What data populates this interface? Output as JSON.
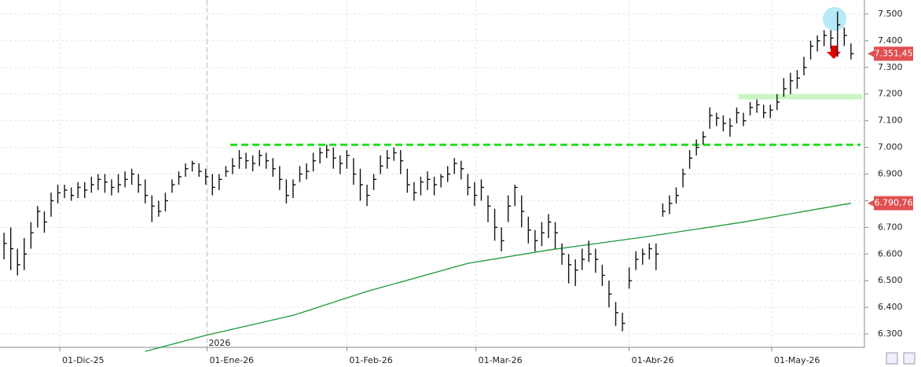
{
  "chart_data": {
    "type": "hlc",
    "xlim": [
      -0.6,
      128
    ],
    "xticks": [
      {
        "value": 8.3,
        "label": "01-Dic-25"
      },
      {
        "value": 30.2,
        "label": "01-Ene-26"
      },
      {
        "value": 51,
        "label": "01-Feb-26"
      },
      {
        "value": 70.2,
        "label": "01-Mar-26"
      },
      {
        "value": 93,
        "label": "01-Abr-26"
      },
      {
        "value": 114.2,
        "label": "01-May-26"
      }
    ],
    "ylim": [
      6250,
      7553
    ],
    "yticks": [
      {
        "value": 6300,
        "label": "6.300"
      },
      {
        "value": 6400,
        "label": "6.400"
      },
      {
        "value": 6500,
        "label": "6.500"
      },
      {
        "value": 6600,
        "label": "6.600"
      },
      {
        "value": 6700,
        "label": "6.700"
      },
      {
        "value": 6800,
        "label": "6.800"
      },
      {
        "value": 6900,
        "label": "6.900"
      },
      {
        "value": 7000,
        "label": "7.000"
      },
      {
        "value": 7100,
        "label": "7.100"
      },
      {
        "value": 7200,
        "label": "7.200"
      },
      {
        "value": 7300,
        "label": "7.300"
      },
      {
        "value": 7400,
        "label": "7.400"
      },
      {
        "value": 7500,
        "label": "7.500"
      }
    ],
    "grid": true,
    "color": "#111111",
    "high": [
      6680,
      6700,
      6620,
      6660,
      6720,
      6780,
      6760,
      6830,
      6860,
      6860,
      6850,
      6870,
      6870,
      6890,
      6900,
      6900,
      6880,
      6900,
      6910,
      6920,
      6900,
      6880,
      6820,
      6800,
      6830,
      6880,
      6910,
      6940,
      6950,
      6940,
      6920,
      6900,
      6900,
      6930,
      6960,
      6990,
      6980,
      6970,
      6990,
      6980,
      6960,
      6930,
      6880,
      6880,
      6930,
      6940,
      6980,
      7000,
      7010,
      7000,
      6970,
      6990,
      6960,
      6920,
      6860,
      6900,
      6970,
      6990,
      7000,
      6990,
      6920,
      6870,
      6890,
      6910,
      6890,
      6900,
      6930,
      6960,
      6950,
      6900,
      6870,
      6880,
      6820,
      6770,
      6700,
      6820,
      6860,
      6820,
      6740,
      6690,
      6720,
      6750,
      6720,
      6640,
      6600,
      6580,
      6620,
      6650,
      6620,
      6560,
      6500,
      6420,
      6380,
      6550,
      6610,
      6620,
      6640,
      6640,
      6790,
      6820,
      6850,
      6920,
      6990,
      7030,
      7060,
      7150,
      7130,
      7120,
      7110,
      7150,
      7130,
      7170,
      7180,
      7160,
      7160,
      7200,
      7260,
      7280,
      7290,
      7340,
      7400,
      7420,
      7440,
      7440,
      7510,
      7450,
      7390
    ],
    "low": [
      6580,
      6540,
      6520,
      6540,
      6620,
      6700,
      6680,
      6740,
      6790,
      6810,
      6800,
      6810,
      6810,
      6830,
      6840,
      6830,
      6820,
      6830,
      6850,
      6860,
      6830,
      6790,
      6720,
      6740,
      6760,
      6830,
      6860,
      6890,
      6910,
      6890,
      6860,
      6820,
      6840,
      6890,
      6900,
      6920,
      6920,
      6910,
      6930,
      6920,
      6890,
      6840,
      6790,
      6810,
      6870,
      6880,
      6910,
      6940,
      6960,
      6920,
      6900,
      6920,
      6860,
      6800,
      6780,
      6840,
      6900,
      6920,
      6950,
      6900,
      6830,
      6800,
      6820,
      6840,
      6820,
      6850,
      6870,
      6900,
      6880,
      6820,
      6780,
      6800,
      6720,
      6650,
      6610,
      6720,
      6780,
      6700,
      6640,
      6610,
      6630,
      6660,
      6620,
      6560,
      6490,
      6480,
      6540,
      6570,
      6530,
      6480,
      6400,
      6330,
      6310,
      6470,
      6540,
      6560,
      6580,
      6540,
      6740,
      6750,
      6790,
      6850,
      6920,
      6970,
      7010,
      7070,
      7080,
      7060,
      7040,
      7090,
      7080,
      7120,
      7130,
      7110,
      7110,
      7140,
      7190,
      7200,
      7220,
      7270,
      7330,
      7360,
      7380,
      7370,
      7340,
      7380,
      7330
    ],
    "close": [
      6640,
      6620,
      6560,
      6600,
      6680,
      6760,
      6720,
      6800,
      6830,
      6840,
      6820,
      6850,
      6840,
      6860,
      6880,
      6870,
      6850,
      6860,
      6880,
      6900,
      6860,
      6820,
      6780,
      6760,
      6800,
      6860,
      6890,
      6920,
      6940,
      6910,
      6890,
      6850,
      6880,
      6910,
      6930,
      6960,
      6950,
      6940,
      6970,
      6950,
      6920,
      6880,
      6820,
      6860,
      6900,
      6910,
      6950,
      6980,
      6990,
      6960,
      6940,
      6970,
      6900,
      6860,
      6820,
      6880,
      6930,
      6960,
      6980,
      6950,
      6860,
      6830,
      6870,
      6880,
      6860,
      6890,
      6900,
      6940,
      6920,
      6850,
      6820,
      6850,
      6780,
      6700,
      6650,
      6780,
      6850,
      6760,
      6690,
      6650,
      6680,
      6720,
      6680,
      6600,
      6560,
      6540,
      6580,
      6600,
      6580,
      6520,
      6450,
      6380,
      6340,
      6500,
      6580,
      6600,
      6620,
      6600,
      6760,
      6790,
      6820,
      6900,
      6960,
      7000,
      7040,
      7120,
      7110,
      7090,
      7080,
      7130,
      7100,
      7150,
      7160,
      7130,
      7140,
      7170,
      7220,
      7250,
      7260,
      7300,
      7380,
      7400,
      7420,
      7410,
      7460,
      7420,
      7351.45
    ],
    "close_label": "7.351,45",
    "moving_average": {
      "color": "#1a9a3a",
      "x": [
        21,
        30,
        43,
        54,
        69,
        81,
        95,
        110,
        126
      ],
      "values": [
        6235,
        6295,
        6370,
        6460,
        6565,
        6615,
        6663,
        6720,
        6790.76
      ],
      "value_label": "6.790,76"
    },
    "resistance": {
      "value": 7010,
      "color": "#22dd22"
    },
    "zone": {
      "values": [
        7180,
        7200
      ],
      "color": "#c8f5c0"
    },
    "annotations": [
      "2026"
    ],
    "last_price_color": "#e05050"
  }
}
